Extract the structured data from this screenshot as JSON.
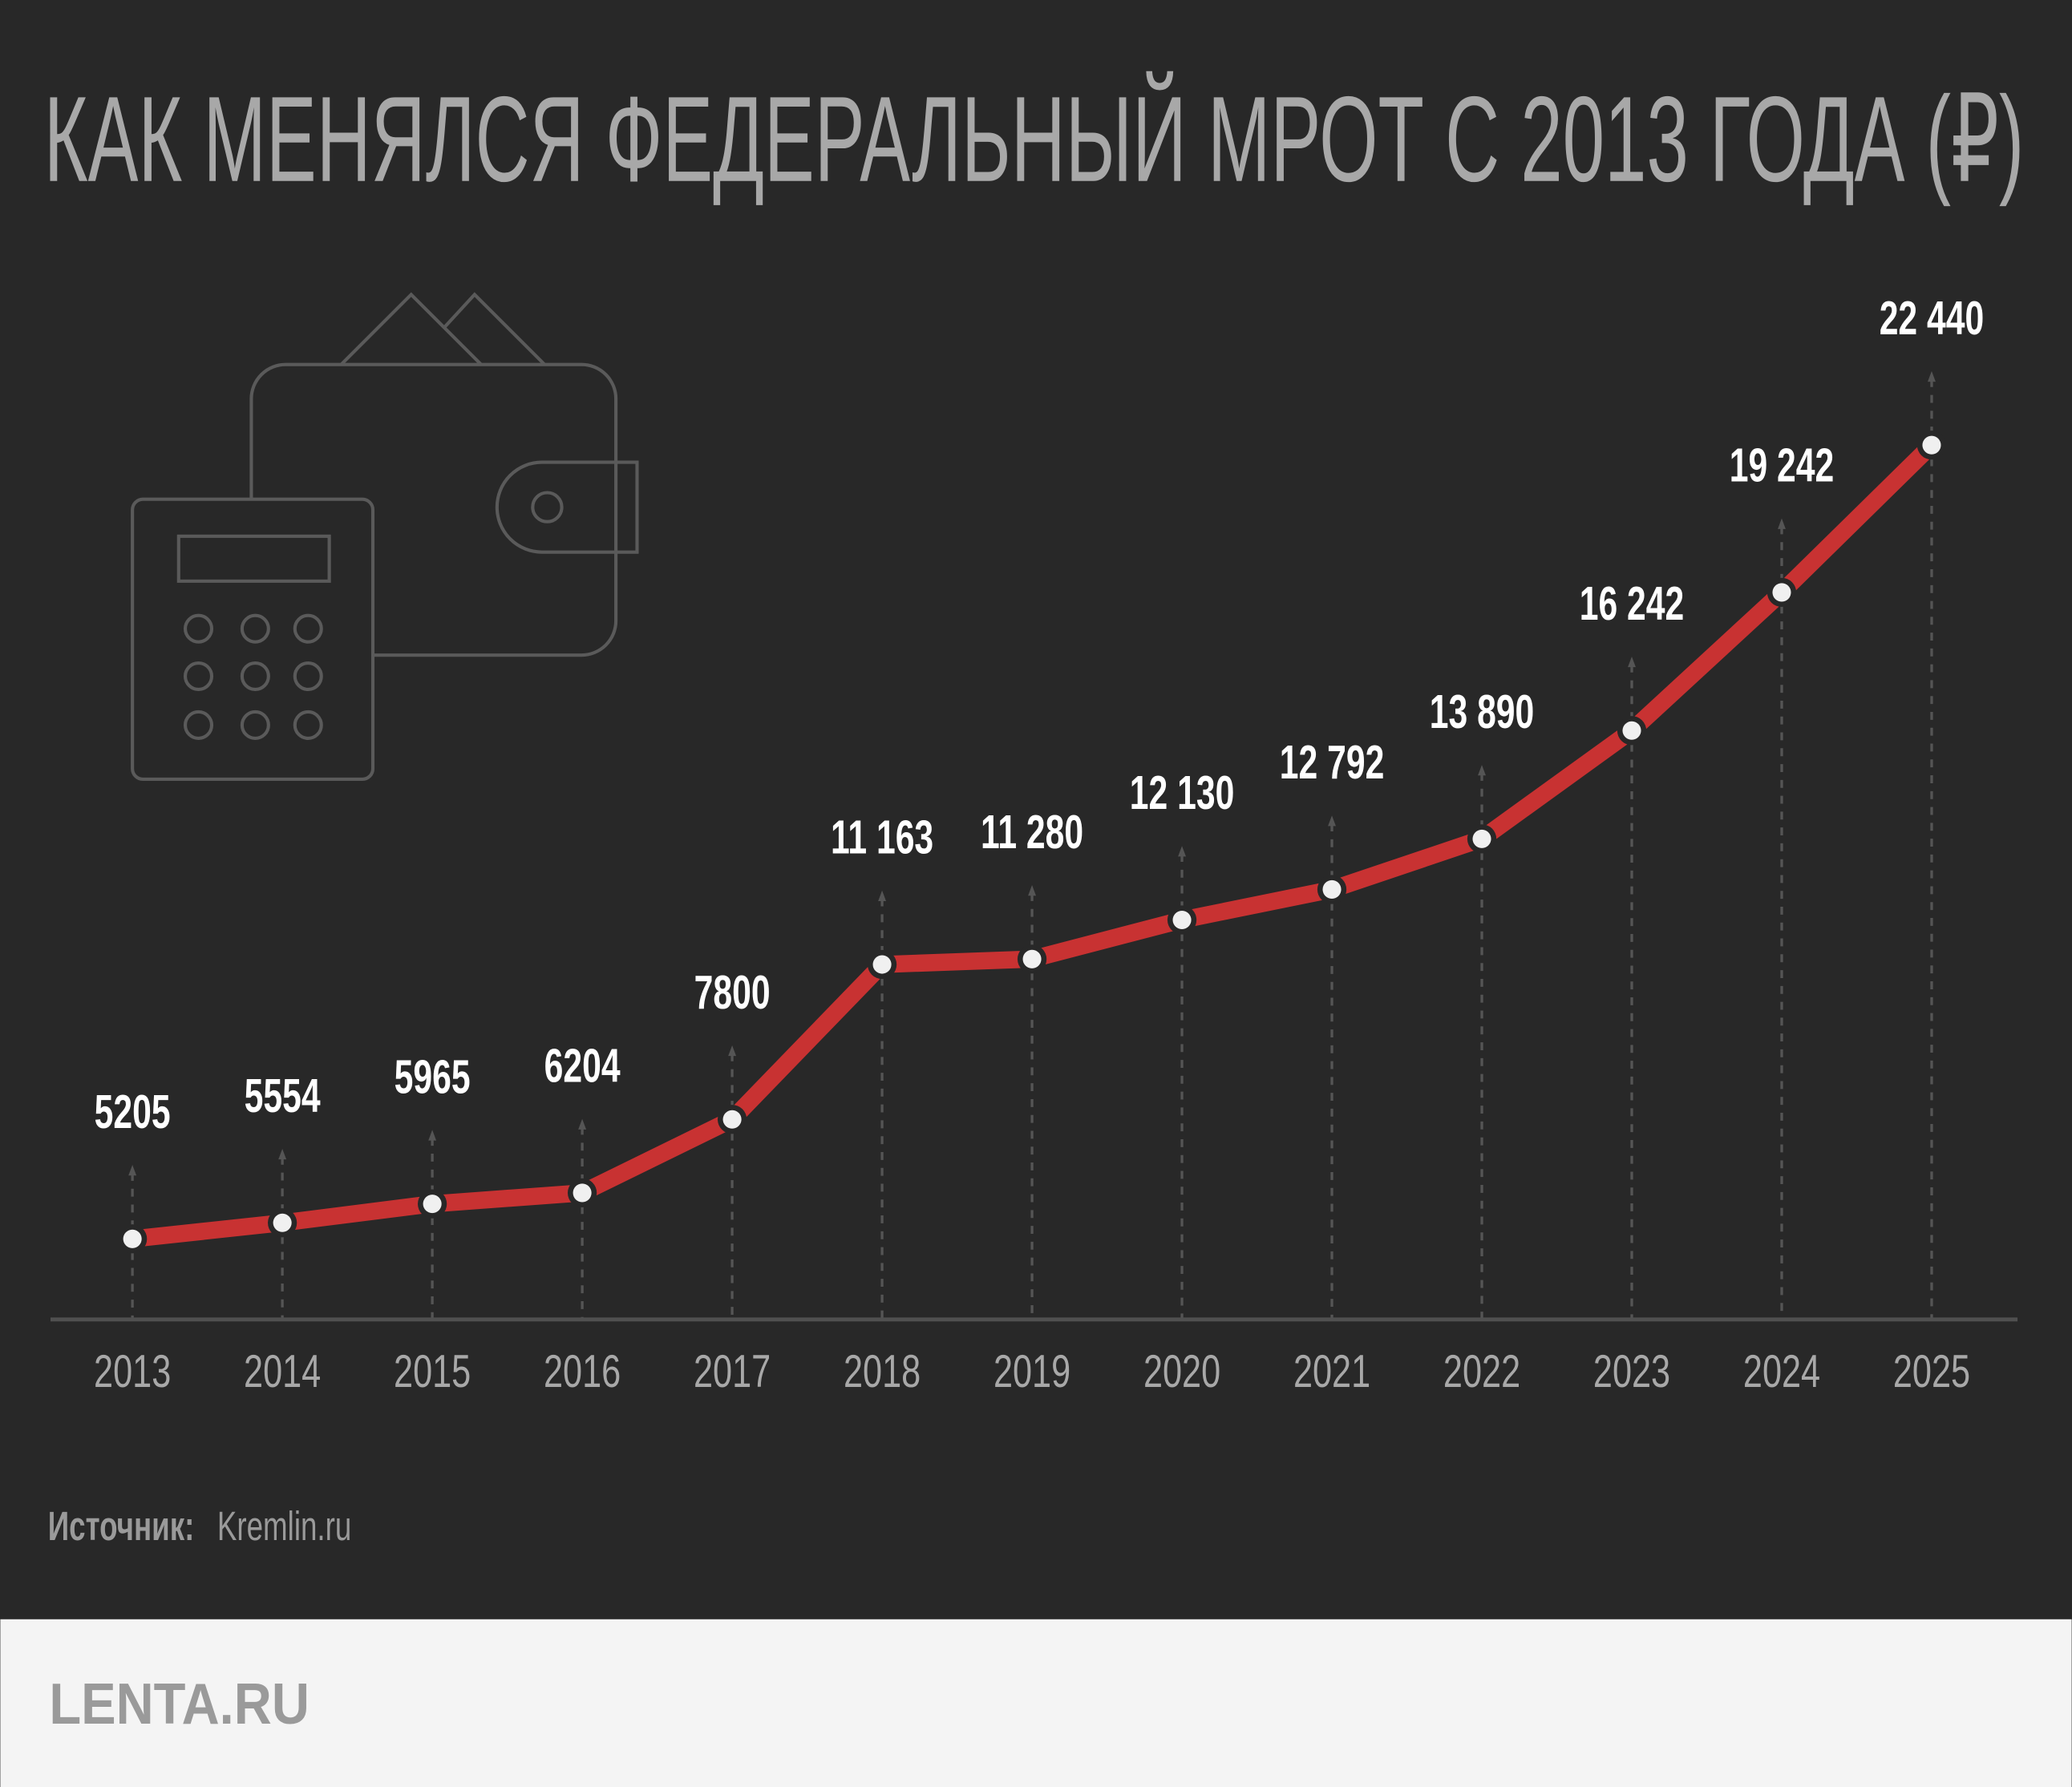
{
  "chart_data": {
    "type": "line",
    "title": "КАК МЕНЯЛСЯ ФЕДЕРАЛЬНЫЙ МРОТ С 2013 ГОДА (₽)",
    "xlabel": "",
    "ylabel": "",
    "categories": [
      "2013",
      "2014",
      "2015",
      "2016",
      "2017",
      "2018",
      "2019",
      "2020",
      "2021",
      "2022",
      "2023",
      "2024",
      "2025"
    ],
    "series": [
      {
        "name": "МРОТ",
        "values": [
          5205,
          5554,
          5965,
          6204,
          7800,
          11163,
          11280,
          12130,
          12792,
          13890,
          16242,
          19242,
          22440
        ]
      }
    ],
    "data_labels": [
      "5205",
      "5554",
      "5965",
      "6204",
      "7800",
      "11 163",
      "11 280",
      "12 130",
      "12 792",
      "13 890",
      "16 242",
      "19 242",
      "22 440"
    ],
    "grid": false,
    "legend": "none"
  },
  "source": {
    "label": "Источник:",
    "value": "Kremlin.ru"
  },
  "footer": {
    "logo": "LENTA.RU"
  },
  "colors": {
    "background": "#282828",
    "line": "#c83232",
    "point": "#f0f0f0",
    "footer_bg": "#f4f4f4",
    "muted": "#9a9a9a"
  },
  "icons": [
    "wallet-icon",
    "calculator-icon"
  ]
}
